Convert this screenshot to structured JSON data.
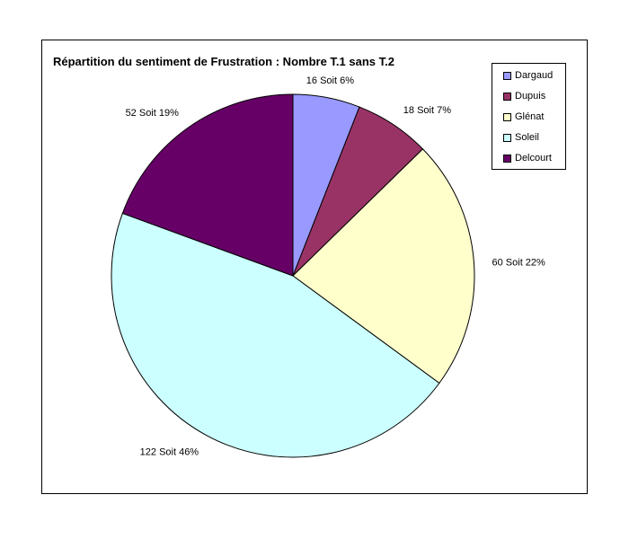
{
  "chart_data": {
    "type": "pie",
    "title": "Répartition du sentiment de Frustration : Nombre T.1 sans T.2",
    "categories": [
      "Dargaud",
      "Dupuis",
      "Glénat",
      "Soleil",
      "Delcourt"
    ],
    "values": [
      16,
      18,
      60,
      122,
      52
    ],
    "colors": [
      "#9999ff",
      "#993366",
      "#ffffcc",
      "#ccffff",
      "#660066"
    ],
    "data_labels": [
      "16 Soit 6%",
      "18 Soit 7%",
      "60 Soit 22%",
      "122 Soit 46%",
      "52 Soit 19%"
    ],
    "legend_position": "right",
    "start_angle": "12 o'clock",
    "direction": "clockwise"
  }
}
